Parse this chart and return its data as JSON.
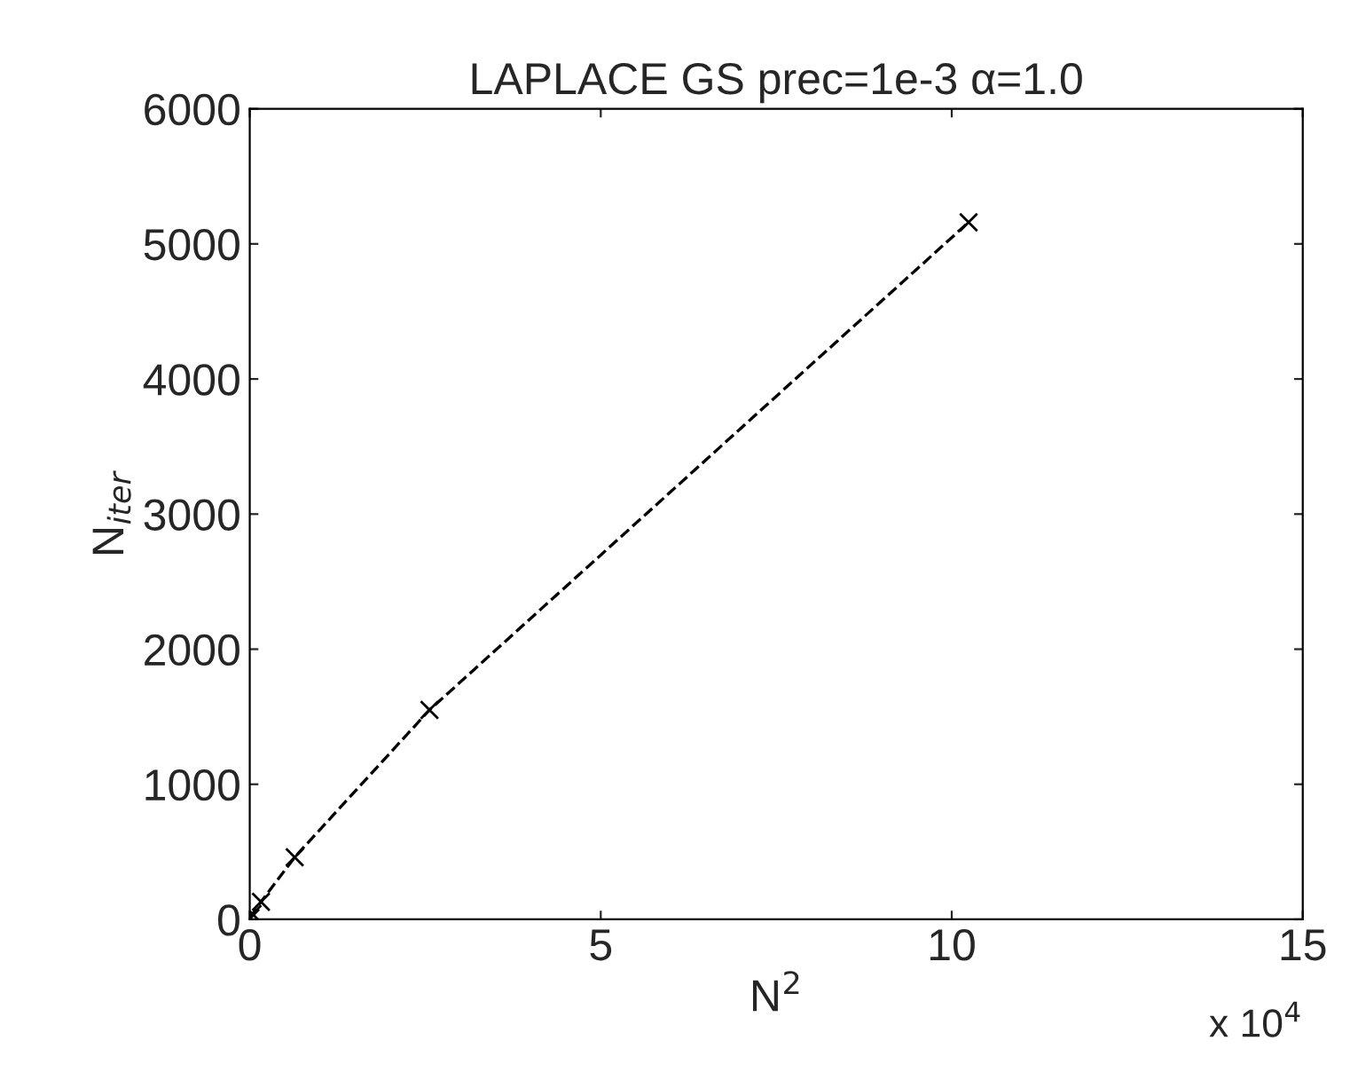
{
  "chart_data": {
    "type": "line",
    "title": "LAPLACE GS prec=1e-3 α=1.0",
    "xlabel": "N$^{2}$",
    "ylabel": "N$_{iter}$",
    "x": [
      0.01,
      0.04,
      0.16,
      0.64,
      2.56,
      10.24
    ],
    "series": [
      {
        "color": "#000000",
        "values": [
          10,
          40,
          130,
          460,
          1550,
          5160
        ]
      }
    ],
    "marker": "cross",
    "line_style": "dashed",
    "xlim": [
      0,
      15
    ],
    "xticks": [
      0,
      5,
      10,
      15
    ],
    "ylim": [
      0,
      6000
    ],
    "yticks": [
      0,
      1000,
      2000,
      3000,
      4000,
      5000,
      6000
    ],
    "annotations": [
      "x 10$^{4}$"
    ],
    "grid": false,
    "legend": false
  }
}
